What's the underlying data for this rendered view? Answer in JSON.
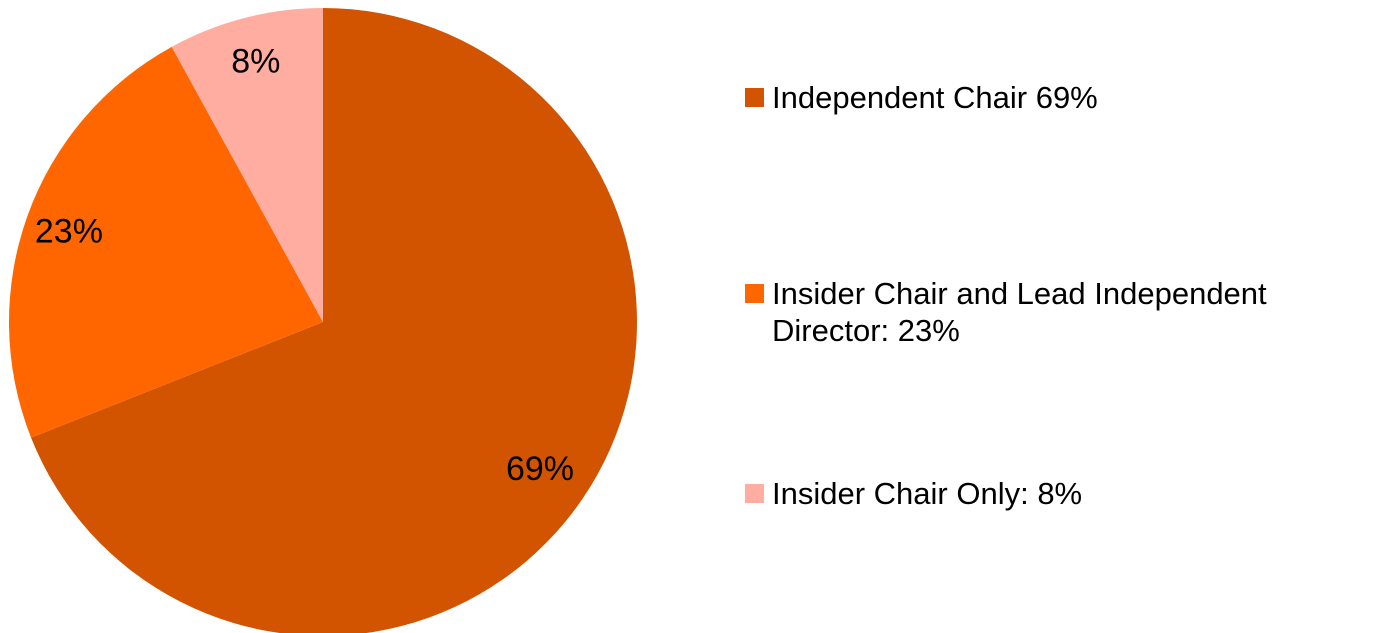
{
  "chart_data": {
    "type": "pie",
    "title": "",
    "slices": [
      {
        "label": "Independent Chair 69%",
        "value": 69,
        "data_label": "69%",
        "color": "#D35400"
      },
      {
        "label": "Insider Chair and Lead Independent Director: 23%",
        "value": 23,
        "data_label": "23%",
        "color": "#FF6600"
      },
      {
        "label": "Insider Chair Only: 8%",
        "value": 8,
        "data_label": "8%",
        "color": "#FFADA0"
      }
    ],
    "legend_position": "right",
    "start_angle": "12 o'clock",
    "direction": "clockwise"
  }
}
